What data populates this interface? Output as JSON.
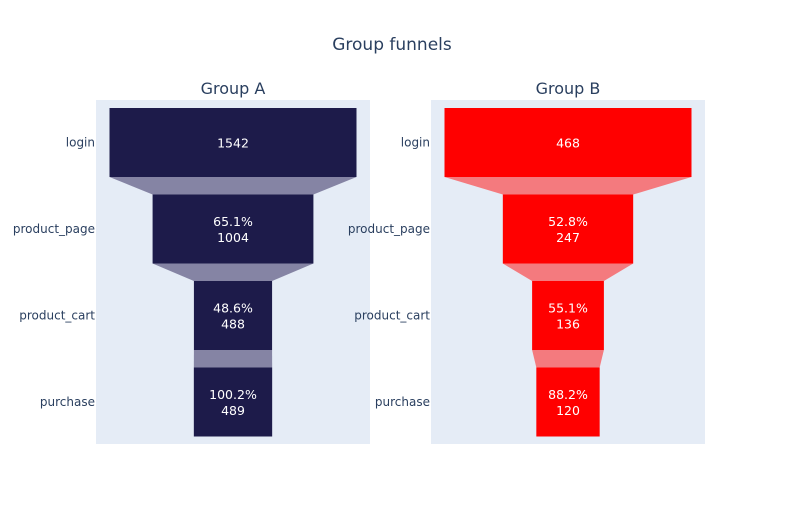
{
  "chart_data": {
    "type": "funnel",
    "title": "Group funnels",
    "stages": [
      "login",
      "product_page",
      "product_cart",
      "purchase"
    ],
    "panels": [
      {
        "title": "Group A",
        "color": "#1d1b4a",
        "connector_color": "#8584a4",
        "values": [
          1542,
          1004,
          488,
          489
        ],
        "percents": [
          "",
          "65.1%",
          "48.6%",
          "100.2%"
        ]
      },
      {
        "title": "Group B",
        "color": "#ff0000",
        "connector_color": "#f47a7e",
        "values": [
          468,
          247,
          136,
          120
        ],
        "percents": [
          "",
          "52.8%",
          "55.1%",
          "88.2%"
        ]
      }
    ],
    "background_color": "#e5ecf6"
  }
}
